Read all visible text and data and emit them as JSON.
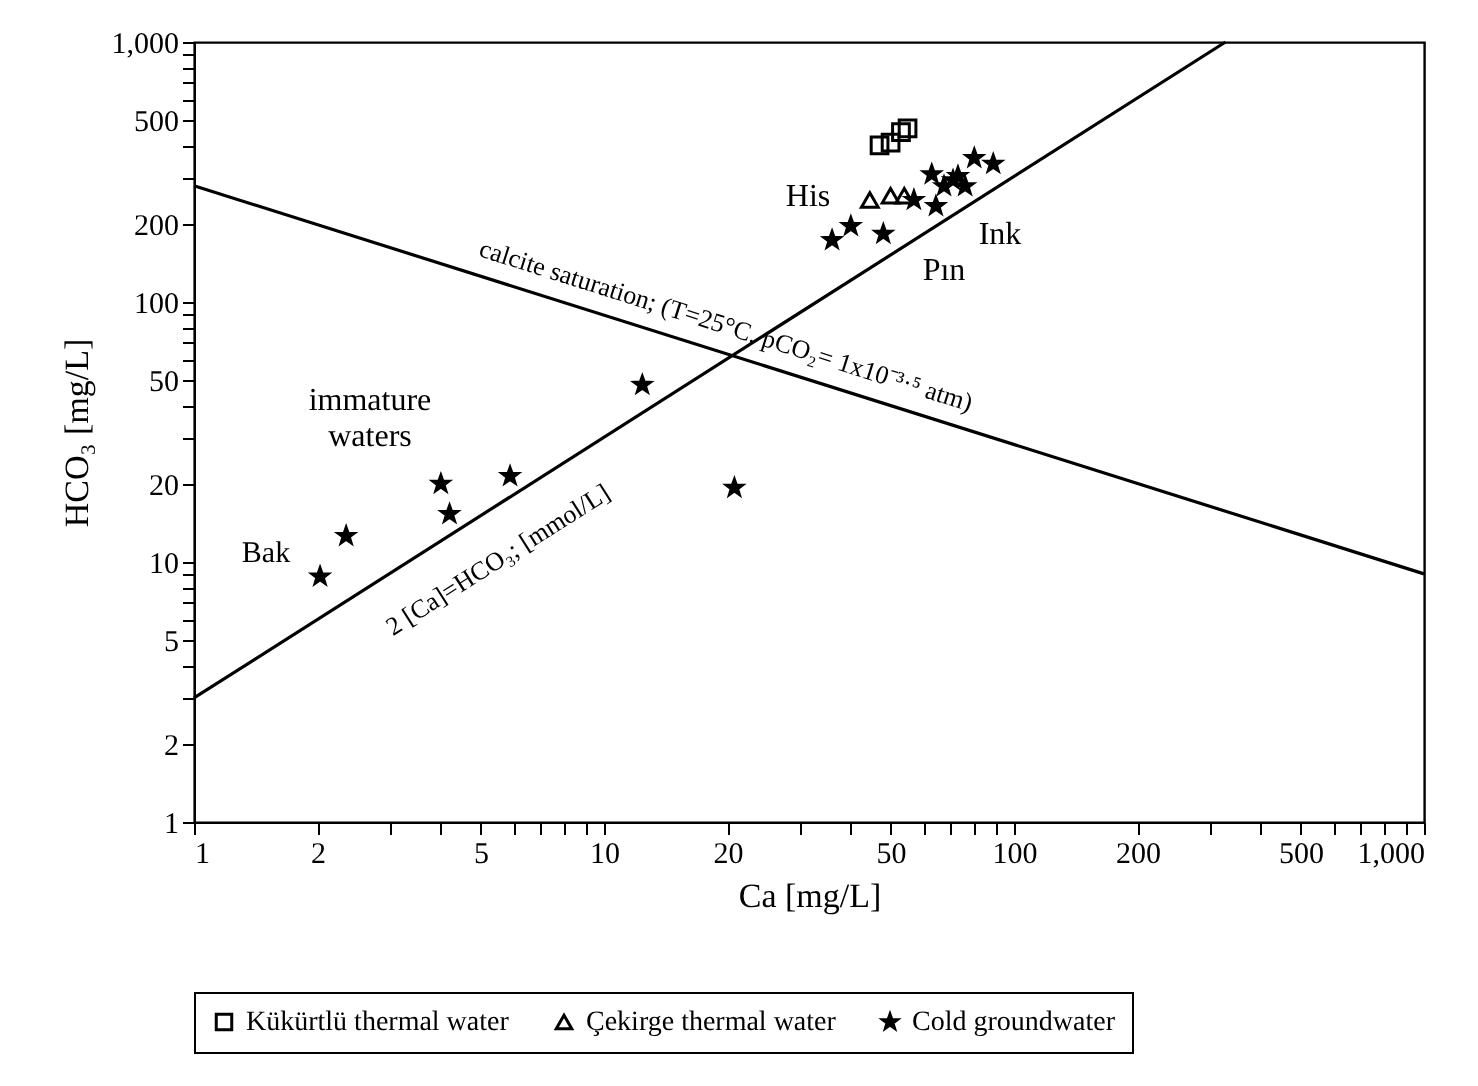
{
  "chart_data": {
    "type": "scatter",
    "xlabel": "Ca [mg/L]",
    "ylabel": "HCO₃ [mg/L]",
    "log": "xy",
    "legend": "bottom",
    "xlim": [
      1,
      1000
    ],
    "ylim": [
      1,
      1000
    ],
    "xticks": [
      1,
      2,
      {
        "value": 3,
        "label": null
      },
      {
        "value": 4,
        "label": null
      },
      5,
      {
        "value": 6,
        "label": null
      },
      {
        "value": 7,
        "label": null
      },
      {
        "value": 8,
        "label": null
      },
      {
        "value": 9,
        "label": null
      },
      10,
      20,
      {
        "value": 30,
        "label": null
      },
      {
        "value": 40,
        "label": null
      },
      50,
      {
        "value": 60,
        "label": null
      },
      {
        "value": 70,
        "label": null
      },
      {
        "value": 80,
        "label": null
      },
      {
        "value": 90,
        "label": null
      },
      100,
      200,
      {
        "value": 300,
        "label": null
      },
      {
        "value": 400,
        "label": null
      },
      500,
      {
        "value": 600,
        "label": null
      },
      {
        "value": 700,
        "label": null
      },
      {
        "value": 800,
        "label": null
      },
      {
        "value": 900,
        "label": null
      },
      {
        "value": 1000,
        "label": "1,000"
      }
    ],
    "yticks": [
      1,
      2,
      {
        "value": 3,
        "label": null
      },
      {
        "value": 4,
        "label": null
      },
      5,
      {
        "value": 6,
        "label": null
      },
      {
        "value": 7,
        "label": null
      },
      {
        "value": 8,
        "label": null
      },
      {
        "value": 9,
        "label": null
      },
      10,
      20,
      {
        "value": 30,
        "label": null
      },
      {
        "value": 40,
        "label": null
      },
      50,
      {
        "value": 60,
        "label": null
      },
      {
        "value": 70,
        "label": null
      },
      {
        "value": 80,
        "label": null
      },
      {
        "value": 90,
        "label": null
      },
      100,
      200,
      {
        "value": 300,
        "label": null
      },
      {
        "value": 400,
        "label": null
      },
      500,
      {
        "value": 600,
        "label": null
      },
      {
        "value": 700,
        "label": null
      },
      {
        "value": 800,
        "label": null
      },
      {
        "value": 900,
        "label": null
      },
      {
        "value": 1000,
        "label": "1,000"
      }
    ],
    "series": [
      {
        "name": "Kükürtlü thermal water",
        "marker": "square",
        "color": "#000000",
        "x": [
          47,
          50,
          53,
          55
        ],
        "values": [
          400,
          410,
          450,
          465
        ]
      },
      {
        "name": "Çekirge thermal water",
        "marker": "triangle",
        "color": "#000000",
        "x": [
          44.5,
          50,
          54
        ],
        "values": [
          247,
          256,
          256
        ]
      },
      {
        "name": "Cold groundwater",
        "marker": "star",
        "color": "#000000",
        "x": [
          2.03,
          2.35,
          4.0,
          4.2,
          5.9,
          12.4,
          20.8,
          36,
          40,
          48,
          57,
          63,
          64.5,
          67.5,
          71,
          73,
          76,
          80,
          89
        ],
        "values": [
          8.8,
          12.6,
          20,
          15.3,
          21.4,
          48,
          19.3,
          173,
          196,
          183,
          247,
          310,
          234,
          279,
          294,
          305,
          279,
          358,
          340
        ]
      },
      {
        "type": "line",
        "color": "#000000",
        "x": [
          1,
          1000
        ],
        "values": [
          280,
          9
        ]
      },
      {
        "type": "line",
        "color": "#000000",
        "x": [
          1,
          328
        ],
        "values": [
          3,
          1000
        ]
      }
    ],
    "annotations": [
      "calcite saturation; (T=25°C, pCO₂= 1x10⁻³·⁵ atm)",
      "2 [Ca]=HCO₃; [mmol/L]",
      "immature waters",
      "Bak",
      "His",
      "Ink",
      "Pın"
    ]
  }
}
